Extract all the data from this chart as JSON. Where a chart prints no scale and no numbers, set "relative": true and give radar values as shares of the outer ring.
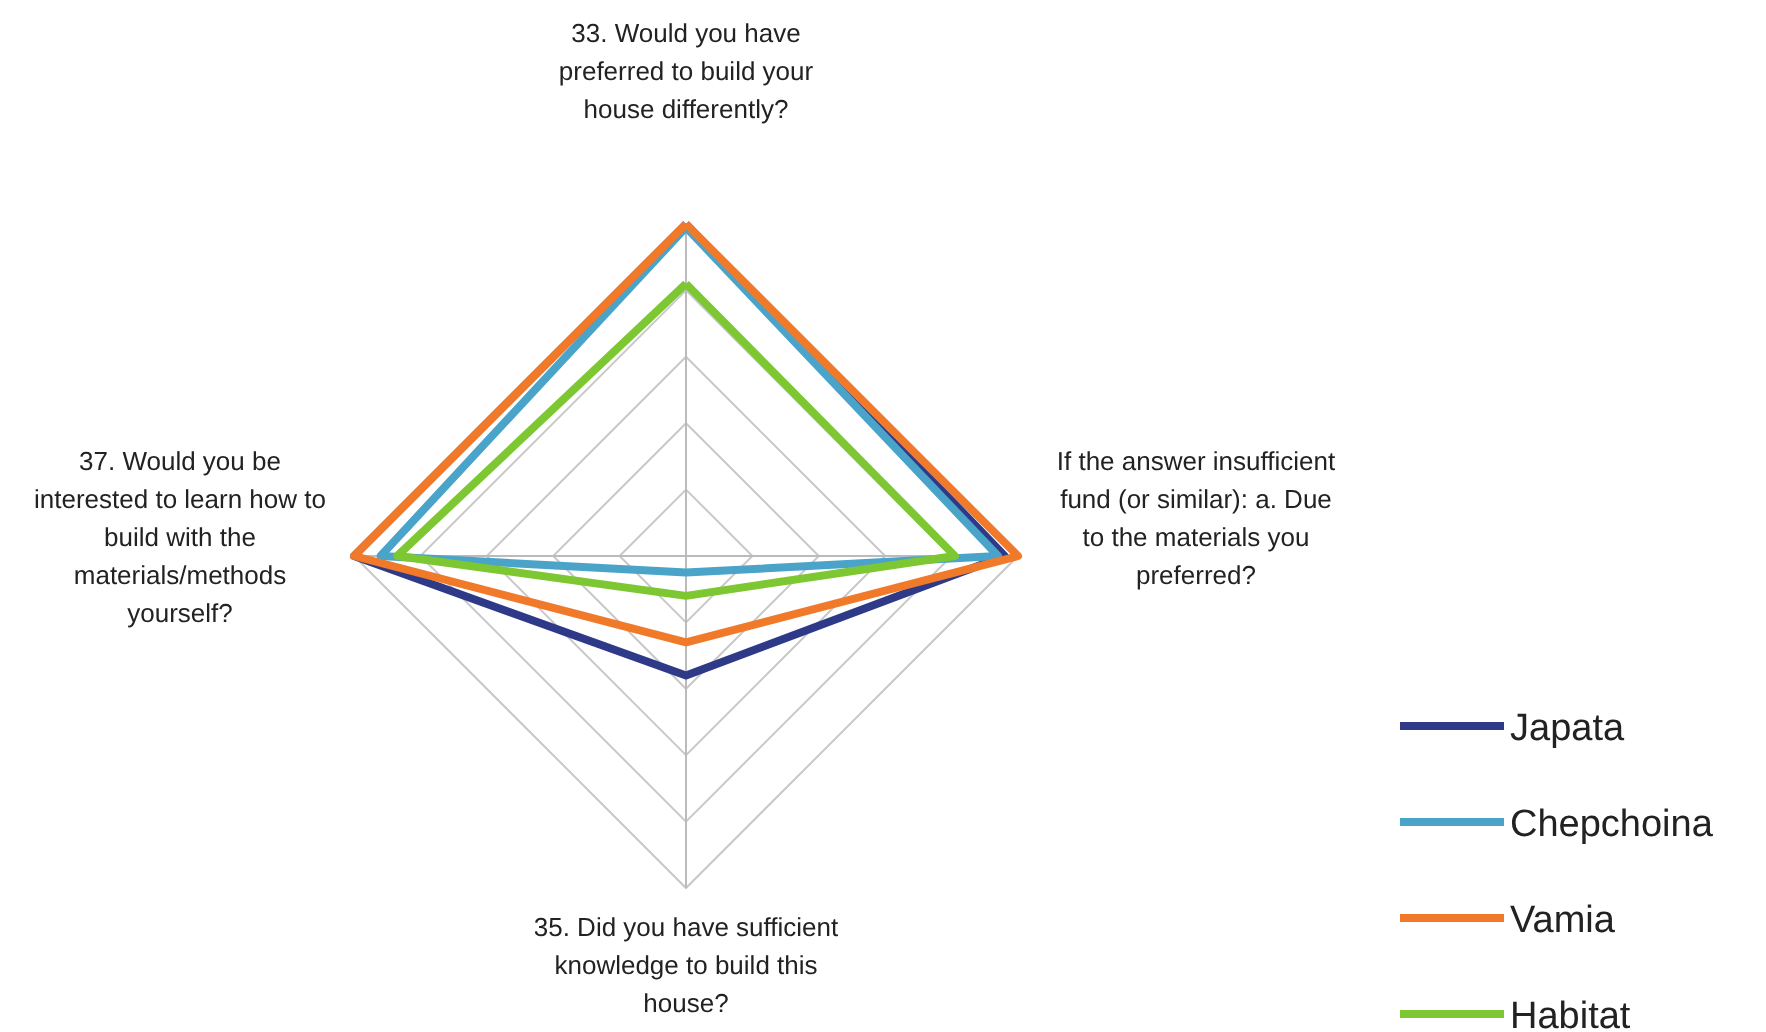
{
  "chart_data": {
    "type": "radar",
    "relative": true,
    "legend": "bottom right",
    "grid": true,
    "categories": [
      "33. Would you have preferred to build your house differently?",
      "If the answer insufficient fund (or similar): a. Due to the materials you preferred?",
      "35. Did you have sufficient knowledge to build this house?",
      "37. Would you be interested to learn how to build with the materials/methods yourself?"
    ],
    "series": [
      {
        "name": "Japata",
        "color": "#2e3a87",
        "values": [
          1.0,
          0.96,
          0.36,
          1.0
        ]
      },
      {
        "name": "Chepchoina",
        "color": "#4aa3c8",
        "values": [
          0.99,
          0.94,
          0.05,
          0.92
        ]
      },
      {
        "name": "Vamia",
        "color": "#f07a2a",
        "values": [
          1.0,
          1.0,
          0.26,
          1.0
        ]
      },
      {
        "name": "Habitat",
        "color": "#7dc832",
        "values": [
          0.82,
          0.81,
          0.12,
          0.87
        ]
      }
    ]
  }
}
